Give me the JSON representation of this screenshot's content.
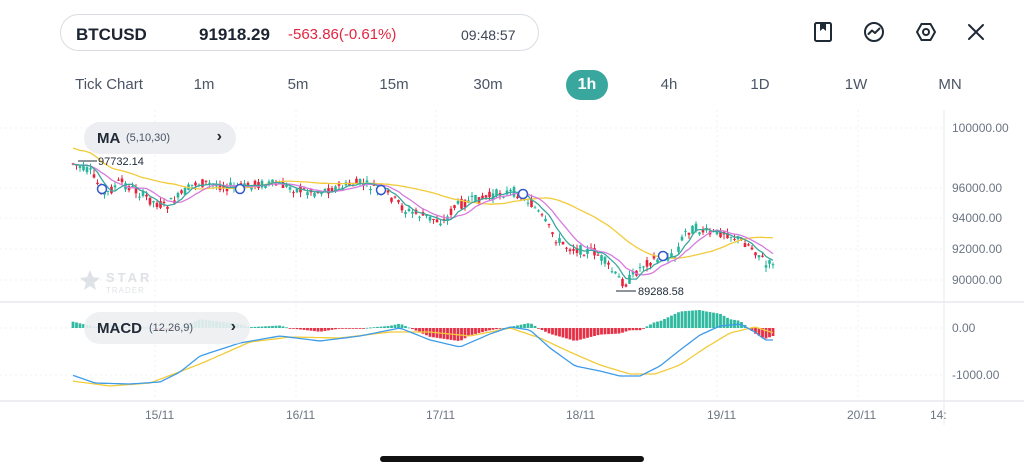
{
  "header": {
    "symbol": "BTCUSD",
    "price": "91918.29",
    "change": "-563.86(-0.61%)",
    "time": "09:48:57"
  },
  "toolbar": {
    "icons": [
      "bookmark-icon",
      "trend-chart-icon",
      "settings-hexagon-icon",
      "close-icon"
    ]
  },
  "timeframes": {
    "items": [
      "Tick Chart",
      "1m",
      "5m",
      "15m",
      "30m",
      "1h",
      "4h",
      "1D",
      "1W",
      "MN"
    ],
    "active": "1h"
  },
  "indicators": {
    "ma": {
      "label": "MA",
      "params": "(5,10,30)"
    },
    "macd": {
      "label": "MACD",
      "params": "(12,26,9)"
    }
  },
  "chart": {
    "price_axis": [
      "100000.00",
      "96000.00",
      "94000.00",
      "92000.00",
      "90000.00"
    ],
    "macd_axis": [
      "0.00",
      "-1000.00"
    ],
    "date_axis": [
      "15/11",
      "16/11",
      "17/11",
      "18/11",
      "19/11",
      "20/11",
      "14:"
    ],
    "high_label": "97732.14",
    "low_label": "89288.58",
    "watermark_top": "STAR",
    "watermark_bottom": "TRADER",
    "colors": {
      "up": "#26b59b",
      "down": "#e5243b",
      "ma5": "#3aa79e",
      "ma10": "#d77be0",
      "ma30": "#f2cb3a",
      "dif": "#3d9be9",
      "dea": "#f2cb3a"
    }
  }
}
